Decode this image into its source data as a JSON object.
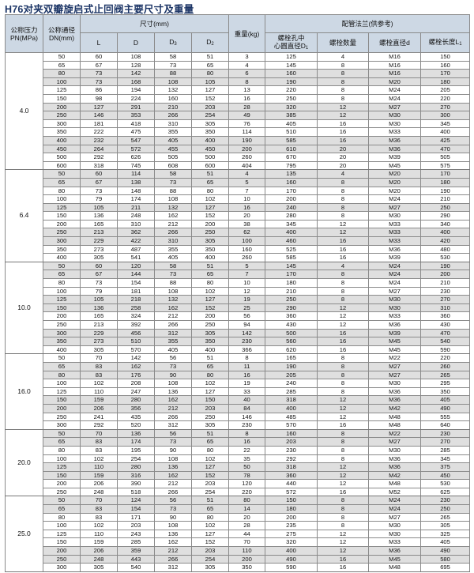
{
  "title": "H76对夹双瓣旋启式止回阀主要尺寸及重量",
  "headers": {
    "pn": "公称压力PN(MPa)",
    "pn_l1": "公称压力",
    "pn_l2": "PN(MPa)",
    "dn_l1": "公称通径",
    "dn_l2": "DN(mm)",
    "size": "尺寸(mm)",
    "L": "L",
    "D": "D",
    "D3": "D",
    "D3_sub": "3",
    "D2": "D",
    "D2_sub": "2",
    "weight": "重量(kg)",
    "flange": "配管法兰(供参考)",
    "D1_l1": "螺栓孔中",
    "D1_l2": "心圆直径D",
    "D1_sub": "1",
    "bolt_count": "螺栓数量",
    "bolt_dia": "螺栓直径d",
    "bolt_len": "螺栓长度L",
    "bolt_len_sub": "1"
  },
  "groups": [
    {
      "pn": "4.0",
      "rows": [
        [
          "50",
          "60",
          "108",
          "58",
          "51",
          "3",
          "125",
          "4",
          "M16",
          "150",
          0
        ],
        [
          "65",
          "67",
          "128",
          "73",
          "65",
          "4",
          "145",
          "8",
          "M16",
          "160",
          0
        ],
        [
          "80",
          "73",
          "142",
          "88",
          "80",
          "6",
          "160",
          "8",
          "M16",
          "170",
          1
        ],
        [
          "100",
          "73",
          "168",
          "108",
          "105",
          "8",
          "190",
          "8",
          "M20",
          "180",
          1
        ],
        [
          "125",
          "86",
          "194",
          "132",
          "127",
          "13",
          "220",
          "8",
          "M24",
          "205",
          0
        ],
        [
          "150",
          "98",
          "224",
          "160",
          "152",
          "16",
          "250",
          "8",
          "M24",
          "220",
          0
        ],
        [
          "200",
          "127",
          "291",
          "210",
          "203",
          "28",
          "320",
          "12",
          "M27",
          "270",
          1
        ],
        [
          "250",
          "146",
          "353",
          "266",
          "254",
          "49",
          "385",
          "12",
          "M30",
          "300",
          1
        ],
        [
          "300",
          "181",
          "418",
          "310",
          "305",
          "76",
          "405",
          "16",
          "M30",
          "345",
          0
        ],
        [
          "350",
          "222",
          "475",
          "355",
          "350",
          "114",
          "510",
          "16",
          "M33",
          "400",
          0
        ],
        [
          "400",
          "232",
          "547",
          "405",
          "400",
          "190",
          "585",
          "16",
          "M36",
          "425",
          1
        ],
        [
          "450",
          "264",
          "572",
          "455",
          "450",
          "200",
          "610",
          "20",
          "M36",
          "470",
          1
        ],
        [
          "500",
          "292",
          "626",
          "505",
          "500",
          "260",
          "670",
          "20",
          "M39",
          "505",
          0
        ],
        [
          "600",
          "318",
          "745",
          "608",
          "600",
          "404",
          "795",
          "20",
          "M45",
          "575",
          0
        ]
      ]
    },
    {
      "pn": "6.4",
      "rows": [
        [
          "50",
          "60",
          "114",
          "58",
          "51",
          "4",
          "135",
          "4",
          "M20",
          "170",
          1
        ],
        [
          "65",
          "67",
          "138",
          "73",
          "65",
          "5",
          "160",
          "8",
          "M20",
          "180",
          1
        ],
        [
          "80",
          "73",
          "148",
          "88",
          "80",
          "7",
          "170",
          "8",
          "M20",
          "190",
          0
        ],
        [
          "100",
          "79",
          "174",
          "108",
          "102",
          "10",
          "200",
          "8",
          "M24",
          "210",
          0
        ],
        [
          "125",
          "105",
          "211",
          "132",
          "127",
          "16",
          "240",
          "8",
          "M27",
          "250",
          1
        ],
        [
          "150",
          "136",
          "248",
          "162",
          "152",
          "20",
          "280",
          "8",
          "M30",
          "290",
          0
        ],
        [
          "200",
          "165",
          "310",
          "212",
          "200",
          "38",
          "345",
          "12",
          "M33",
          "340",
          0
        ],
        [
          "250",
          "213",
          "362",
          "266",
          "250",
          "62",
          "400",
          "12",
          "M33",
          "400",
          1
        ],
        [
          "300",
          "229",
          "422",
          "310",
          "305",
          "100",
          "460",
          "16",
          "M33",
          "420",
          1
        ],
        [
          "350",
          "273",
          "487",
          "355",
          "350",
          "160",
          "525",
          "16",
          "M36",
          "480",
          0
        ],
        [
          "400",
          "305",
          "541",
          "405",
          "400",
          "260",
          "585",
          "16",
          "M39",
          "530",
          0
        ]
      ]
    },
    {
      "pn": "10.0",
      "rows": [
        [
          "50",
          "60",
          "120",
          "58",
          "51",
          "5",
          "145",
          "4",
          "M24",
          "190",
          1
        ],
        [
          "65",
          "67",
          "144",
          "73",
          "65",
          "7",
          "170",
          "8",
          "M24",
          "200",
          1
        ],
        [
          "80",
          "73",
          "154",
          "88",
          "80",
          "10",
          "180",
          "8",
          "M24",
          "210",
          0
        ],
        [
          "100",
          "79",
          "181",
          "108",
          "102",
          "12",
          "210",
          "8",
          "M27",
          "230",
          0
        ],
        [
          "125",
          "105",
          "218",
          "132",
          "127",
          "19",
          "250",
          "8",
          "M30",
          "270",
          1
        ],
        [
          "150",
          "136",
          "258",
          "162",
          "152",
          "25",
          "290",
          "12",
          "M30",
          "310",
          1
        ],
        [
          "200",
          "165",
          "324",
          "212",
          "200",
          "56",
          "360",
          "12",
          "M33",
          "360",
          0
        ],
        [
          "250",
          "213",
          "392",
          "266",
          "250",
          "94",
          "430",
          "12",
          "M36",
          "430",
          0
        ],
        [
          "300",
          "229",
          "456",
          "312",
          "305",
          "142",
          "500",
          "16",
          "M39",
          "470",
          1
        ],
        [
          "350",
          "273",
          "510",
          "355",
          "350",
          "230",
          "560",
          "16",
          "M45",
          "540",
          1
        ],
        [
          "400",
          "305",
          "570",
          "405",
          "400",
          "366",
          "620",
          "16",
          "M45",
          "590",
          0
        ]
      ]
    },
    {
      "pn": "16.0",
      "rows": [
        [
          "50",
          "70",
          "142",
          "56",
          "51",
          "8",
          "165",
          "8",
          "M22",
          "220",
          0
        ],
        [
          "65",
          "83",
          "162",
          "73",
          "65",
          "11",
          "190",
          "8",
          "M27",
          "260",
          1
        ],
        [
          "80",
          "83",
          "176",
          "90",
          "80",
          "16",
          "205",
          "8",
          "M27",
          "265",
          1
        ],
        [
          "100",
          "102",
          "208",
          "108",
          "102",
          "19",
          "240",
          "8",
          "M30",
          "295",
          0
        ],
        [
          "125",
          "110",
          "247",
          "136",
          "127",
          "33",
          "285",
          "8",
          "M36",
          "350",
          0
        ],
        [
          "150",
          "159",
          "280",
          "162",
          "150",
          "40",
          "318",
          "12",
          "M36",
          "405",
          1
        ],
        [
          "200",
          "206",
          "356",
          "212",
          "203",
          "84",
          "400",
          "12",
          "M42",
          "490",
          1
        ],
        [
          "250",
          "241",
          "435",
          "266",
          "250",
          "146",
          "485",
          "12",
          "M48",
          "555",
          0
        ],
        [
          "300",
          "292",
          "520",
          "312",
          "305",
          "230",
          "570",
          "16",
          "M48",
          "640",
          0
        ]
      ]
    },
    {
      "pn": "20.0",
      "rows": [
        [
          "50",
          "70",
          "136",
          "56",
          "51",
          "8",
          "160",
          "8",
          "M22",
          "230",
          1
        ],
        [
          "65",
          "83",
          "174",
          "73",
          "65",
          "16",
          "203",
          "8",
          "M27",
          "270",
          1
        ],
        [
          "80",
          "83",
          "195",
          "90",
          "80",
          "22",
          "230",
          "8",
          "M30",
          "285",
          0
        ],
        [
          "100",
          "102",
          "254",
          "108",
          "102",
          "35",
          "292",
          "8",
          "M36",
          "345",
          0
        ],
        [
          "125",
          "110",
          "280",
          "136",
          "127",
          "50",
          "318",
          "12",
          "M36",
          "375",
          1
        ],
        [
          "150",
          "159",
          "316",
          "162",
          "152",
          "78",
          "360",
          "12",
          "M42",
          "450",
          1
        ],
        [
          "200",
          "206",
          "390",
          "212",
          "203",
          "120",
          "440",
          "12",
          "M48",
          "530",
          0
        ],
        [
          "250",
          "248",
          "518",
          "266",
          "254",
          "220",
          "572",
          "16",
          "M52",
          "625",
          0
        ]
      ]
    },
    {
      "pn": "25.0",
      "rows": [
        [
          "50",
          "70",
          "124",
          "56",
          "51",
          "80",
          "150",
          "8",
          "M24",
          "230",
          1
        ],
        [
          "65",
          "83",
          "154",
          "73",
          "65",
          "14",
          "180",
          "8",
          "M24",
          "250",
          1
        ],
        [
          "80",
          "83",
          "171",
          "90",
          "80",
          "20",
          "200",
          "8",
          "M27",
          "265",
          0
        ],
        [
          "100",
          "102",
          "203",
          "108",
          "102",
          "28",
          "235",
          "8",
          "M30",
          "305",
          0
        ],
        [
          "125",
          "110",
          "243",
          "136",
          "127",
          "44",
          "275",
          "12",
          "M30",
          "325",
          0
        ],
        [
          "150",
          "159",
          "285",
          "162",
          "152",
          "70",
          "320",
          "12",
          "M33",
          "405",
          0
        ],
        [
          "200",
          "206",
          "359",
          "212",
          "203",
          "110",
          "400",
          "12",
          "M36",
          "490",
          1
        ],
        [
          "250",
          "248",
          "443",
          "266",
          "254",
          "200",
          "490",
          "16",
          "M45",
          "580",
          1
        ],
        [
          "300",
          "305",
          "540",
          "312",
          "305",
          "350",
          "590",
          "16",
          "M48",
          "695",
          0
        ]
      ]
    }
  ]
}
